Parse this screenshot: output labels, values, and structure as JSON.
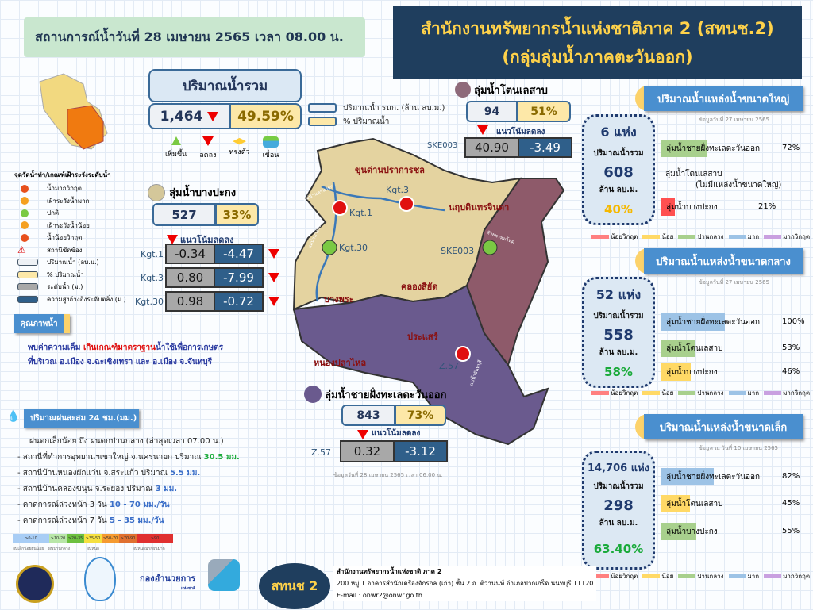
{
  "header": {
    "situation": "สถานการณ์น้ำวันที่  28 เมษายน 2565 เวลา 08.00 น.",
    "office_line1": "สำนักงานทรัพยากรน้ำแห่งชาติภาค 2 (สทนช.2)",
    "office_line2": "(กลุ่มลุ่มน้ำภาคตะวันออก)"
  },
  "total": {
    "title": "ปริมาณน้ำรวม",
    "value": "1,464",
    "percent": "49.59%",
    "trend": "down",
    "legend_value": "ปริมาณน้ำ รนก. (ล้าน ลบ.ม.)",
    "legend_percent": "% ปริมาณน้ำ"
  },
  "symbols": [
    {
      "label": "เพิ่มขึ้น",
      "icon": "up-triangle"
    },
    {
      "label": "ลดลง",
      "icon": "down-triangle"
    },
    {
      "label": "ทรงตัว",
      "icon": "steady-arrows"
    },
    {
      "label": "เขื่อน",
      "icon": "dam"
    }
  ],
  "legend": {
    "title": "จุดวัดน้ำท่า/เกณฑ์เฝ้าระวังระดับน้ำ",
    "items": [
      {
        "label": "น้ำมากวิกฤต",
        "color": "#e8501c"
      },
      {
        "label": "เฝ้าระวังน้ำมาก",
        "color": "#f5a020"
      },
      {
        "label": "ปกติ",
        "color": "#7ac943"
      },
      {
        "label": "เฝ้าระวังน้ำน้อย",
        "color": "#f5a020"
      },
      {
        "label": "น้ำน้อยวิกฤต",
        "color": "#e8501c"
      },
      {
        "label": "สถานีขัดข้อง",
        "color": "#d00"
      },
      {
        "label": "ปริมาณน้ำ (ลบ.ม.)",
        "color": "#eef1f5"
      },
      {
        "label": "% ปริมาณน้ำ",
        "color": "#fde8a8"
      },
      {
        "label": "ระดับน้ำ (ม.)",
        "color": "#a8a8a8"
      },
      {
        "label": "ความสูงอ้างอิงระดับตลิ่ง (ม.)",
        "color": "#2f5f8a"
      }
    ]
  },
  "quality": {
    "button": "คุณภาพน้ำ",
    "text1a": "พบค่าความเค็ม ",
    "text1b": "เกินเกณฑ์มาตราฐาน",
    "text1c": "น้ำใช้เพื่อการเกษตร",
    "text2": "ที่บริเวณ อ.เมือง จ.ฉะเชิงเทรา และ อ.เมือง จ.จันทบุรี"
  },
  "rain": {
    "title": "ปริมาณฝนสะสม 24 ชม.(มม.)",
    "summary": "ฝนตกเล็กน้อย ถึง ฝนตกปานกลาง (ล่าสุดเวลา 07.00 น.)",
    "items": [
      {
        "text": "-  สถานีที่ทำการอุทยานฯเขาใหญ่ จ.นครนายก ปริมาณ ",
        "value": "30.5 มม.",
        "color": "#1aaa3a"
      },
      {
        "text": "-  สถานีบ้านหนองผักแว่น จ.สระแก้ว ปริมาณ ",
        "value": "5.5 มม.",
        "color": "#3a6ec8"
      },
      {
        "text": "-  สถานีบ้านคลองขนุน จ.ระยอง ปริมาณ ",
        "value": "3 มม.",
        "color": "#3a6ec8"
      },
      {
        "text": "-  คาดการณ์ล่วงหน้า 3 วัน  ",
        "value": "10 - 70  มม./วัน",
        "color": "#3a6ec8"
      },
      {
        "text": "-  คาดการณ์ล่วงหน้า 7 วัน  ",
        "value": "5 - 35  มม./วัน",
        "color": "#3a6ec8"
      }
    ],
    "scale": [
      {
        "label": ">0-10",
        "color": "#a8cdf5"
      },
      {
        "label": ">10-20",
        "color": "#b8e6a8"
      },
      {
        "label": ">20-35",
        "color": "#6cc040"
      },
      {
        "label": ">35-50",
        "color": "#f5e040"
      },
      {
        "label": ">50-70",
        "color": "#f59a30"
      },
      {
        "label": ">70-90",
        "color": "#e07030"
      },
      {
        "label": ">90",
        "color": "#e03030"
      }
    ],
    "scale_names": [
      "ฝนเล็กน้อยฝนน้อย",
      "ฝนปานกลาง",
      "ฝนหนัก",
      "ฝนหนักมากฝนมาก"
    ]
  },
  "bangpakong": {
    "name": "ลุ่มน้ำบางปะกง",
    "value": "527",
    "percent": "33%",
    "trend_label": "แนวโน้มลดลง",
    "stations": [
      {
        "id": "Kgt.1",
        "level": "-0.34",
        "ref": "-4.47"
      },
      {
        "id": "Kgt.3",
        "level": "0.80",
        "ref": "-7.99"
      },
      {
        "id": "Kgt.30",
        "level": "0.98",
        "ref": "-0.72"
      }
    ]
  },
  "tonlesap": {
    "name": "ลุ่มน้ำโตนเลสาบ",
    "value": "94",
    "percent": "51%",
    "trend_label": "แนวโน้มลดลง",
    "station": {
      "id": "SKE003",
      "level": "40.90",
      "ref": "-3.49"
    }
  },
  "eastcoast": {
    "name": "ลุ่มน้ำชายฝั่งทะเลตะวันออก",
    "value": "843",
    "percent": "73%",
    "trend_label": "แนวโน้มลดลง",
    "station": {
      "id": "Z.57",
      "level": "0.32",
      "ref": "-3.12"
    },
    "date": "ข้อมูลวันที่ 28 เมษายน 2565 เวลา 06.00 น."
  },
  "map": {
    "dams": [
      "ขุนด่านปราการชล",
      "นฤบดินทรจินดา",
      "คลองสียัด",
      "บางพระ",
      "หนองปลาไหล",
      "ประแสร์"
    ],
    "stations": [
      "Kgt.1",
      "Kgt.3",
      "Kgt.30",
      "SKE003",
      "Z.57"
    ],
    "rivers": [
      "แม่น้ำนครนายก",
      "แม่น้ำบางปะกง",
      "ห้วยพรหมโหด",
      "แม่น้ำจันทบุรี"
    ],
    "colors": {
      "bangpakong": "#e4d3a0",
      "eastcoast": "#6a5a8e",
      "tonlesap": "#8e5a6a"
    }
  },
  "large": {
    "title": "ปริมาณน้ำแหล่งน้ำขนาดใหญ่",
    "date": "ข้อมูลวันที่ 27 เมษายน 2565",
    "count": "6 แห่ง",
    "total_label": "ปริมาณน้ำรวม",
    "total": "608",
    "unit": "ล้าน ลบ.ม.",
    "percent": "40%",
    "percent_color": "#f5b800",
    "bars": [
      {
        "name": "ลุ่มน้ำชายฝั่งทะเลตะวันออก",
        "percent": "72%",
        "value": 72,
        "color": "#a8d08d"
      },
      {
        "name": "ลุ่มน้ำโตนเลสาบ",
        "note": "(ไม่มีแหล่งน้ำขนาดใหญ่)"
      },
      {
        "name": "ลุ่มน้ำบางปะกง",
        "percent": "21%",
        "value": 21,
        "color": "#ff5050"
      }
    ]
  },
  "medium": {
    "title": "ปริมาณน้ำแหล่งน้ำขนาดกลาง",
    "date": "ข้อมูลวันที่ 27 เมษายน 2565",
    "count": "52 แห่ง",
    "total_label": "ปริมาณน้ำรวม",
    "total": "558",
    "unit": "ล้าน ลบ.ม.",
    "percent": "58%",
    "percent_color": "#1aaa3a",
    "bars": [
      {
        "name": "ลุ่มน้ำชายฝั่งทะเลตะวันออก",
        "percent": "100%",
        "value": 100,
        "color": "#9dc3e6"
      },
      {
        "name": "ลุ่มน้ำโตนเลสาบ",
        "percent": "53%",
        "value": 53,
        "color": "#a8d08d"
      },
      {
        "name": "ลุ่มน้ำบางปะกง",
        "percent": "46%",
        "value": 46,
        "color": "#ffd966"
      }
    ]
  },
  "small": {
    "title": "ปริมาณน้ำแหล่งน้ำขนาดเล็ก",
    "date": "ข้อมูล ณ วันที่ 10 เมษายน 2565",
    "count": "14,706 แห่ง",
    "total_label": "ปริมาณน้ำรวม",
    "total": "298",
    "unit": "ล้าน ลบ.ม.",
    "percent": "63.40%",
    "percent_color": "#1aaa3a",
    "bars": [
      {
        "name": "ลุ่มน้ำชายฝั่งทะเลตะวันออก",
        "percent": "82%",
        "value": 82,
        "color": "#9dc3e6"
      },
      {
        "name": "ลุ่มน้ำโตนเลสาบ",
        "percent": "45%",
        "value": 45,
        "color": "#ffd966"
      },
      {
        "name": "ลุ่มน้ำบางปะกง",
        "percent": "55%",
        "value": 55,
        "color": "#a8d08d"
      }
    ]
  },
  "status_legend": [
    {
      "label": "น้อยวิกฤต",
      "color": "#ff8080"
    },
    {
      "label": "น้อย",
      "color": "#ffd966"
    },
    {
      "label": "ปานกลาง",
      "color": "#a8d08d"
    },
    {
      "label": "มาก",
      "color": "#9dc3e6"
    },
    {
      "label": "มากวิกฤต",
      "color": "#c9a0e0"
    }
  ],
  "footer": {
    "badge": "สทนช 2",
    "org": "สำนักงานทรัพยากรน้ำแห่งชาติ ภาค 2",
    "address": "200 หมู่ 1 อาคารสำนักเครื่องจักรกล (เก่า) ชั้น 2 ถ. ติวานนท์ อำเภอปากเกร็ด นนทบุรี 11120",
    "email": "E-mail : onwr2@onwr.go.th",
    "logo3": "กองอำนวยการ",
    "logo3_sub": "แห่งชาติ"
  }
}
